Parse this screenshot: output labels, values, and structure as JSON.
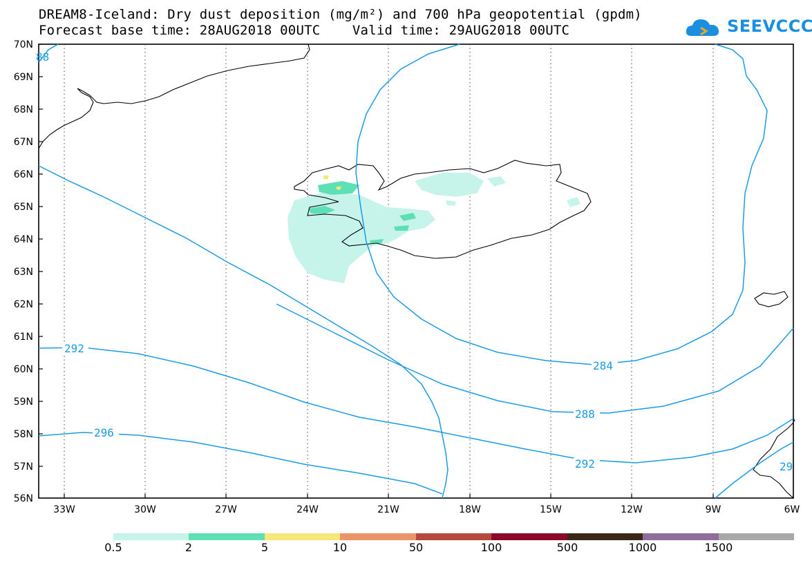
{
  "header": {
    "title_line1": "DREAM8-Iceland: Dry dust deposition (mg/m²) and 700 hPa geopotential (gpdm)",
    "title_line2": "Forecast base time: 28AUG2018 00UTC    Valid time: 29AUG2018 00UTC",
    "logo_text": "SEEVCCC"
  },
  "map": {
    "lat_labels": [
      "70N",
      "69N",
      "68N",
      "67N",
      "66N",
      "65N",
      "64N",
      "63N",
      "62N",
      "61N",
      "60N",
      "59N",
      "58N",
      "57N",
      "56N"
    ],
    "lon_labels": [
      "33W",
      "30W",
      "27W",
      "24W",
      "21W",
      "18W",
      "15W",
      "12W",
      "9W",
      "6W"
    ],
    "contour_labels": {
      "c88": "88",
      "c292_left": "292",
      "c296": "296",
      "c284": "284",
      "c288": "288",
      "c292_right": "292",
      "c29_edge": "29"
    },
    "contour_color": "#1a9be6"
  },
  "legend": {
    "labels": [
      "0.5",
      "2",
      "5",
      "10",
      "50",
      "100",
      "500",
      "1000",
      "1500"
    ],
    "colors": [
      "#c6f4ea",
      "#5ee0b4",
      "#f5e878",
      "#e9956c",
      "#b44a3e",
      "#8a0a2a",
      "#3a2718",
      "#8f6e9e",
      "#a8a8a8"
    ]
  }
}
